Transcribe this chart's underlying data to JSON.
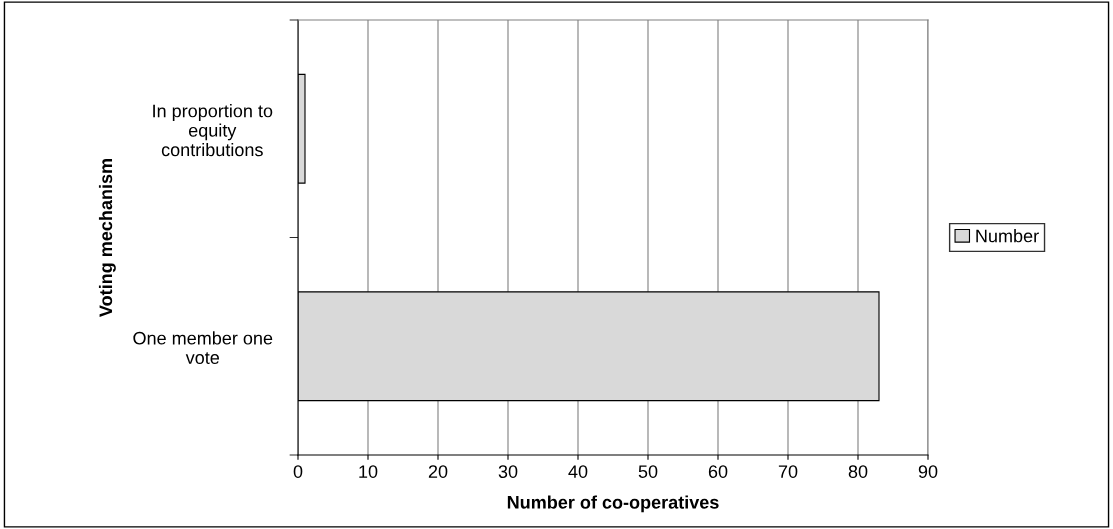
{
  "chart_data": {
    "type": "bar",
    "orientation": "horizontal",
    "categories": [
      "In proportion to\nequity\ncontributions",
      "One member one\nvote"
    ],
    "series": [
      {
        "name": "Number",
        "color": "#d9d9d9",
        "values": [
          1,
          83
        ]
      }
    ],
    "xlabel": "Number of co-operatives",
    "ylabel": "Voting mechanism",
    "xlim": [
      0,
      90
    ],
    "xticks": [
      0,
      10,
      20,
      30,
      40,
      50,
      60,
      70,
      80,
      90
    ],
    "grid": "x",
    "legend": "right"
  }
}
